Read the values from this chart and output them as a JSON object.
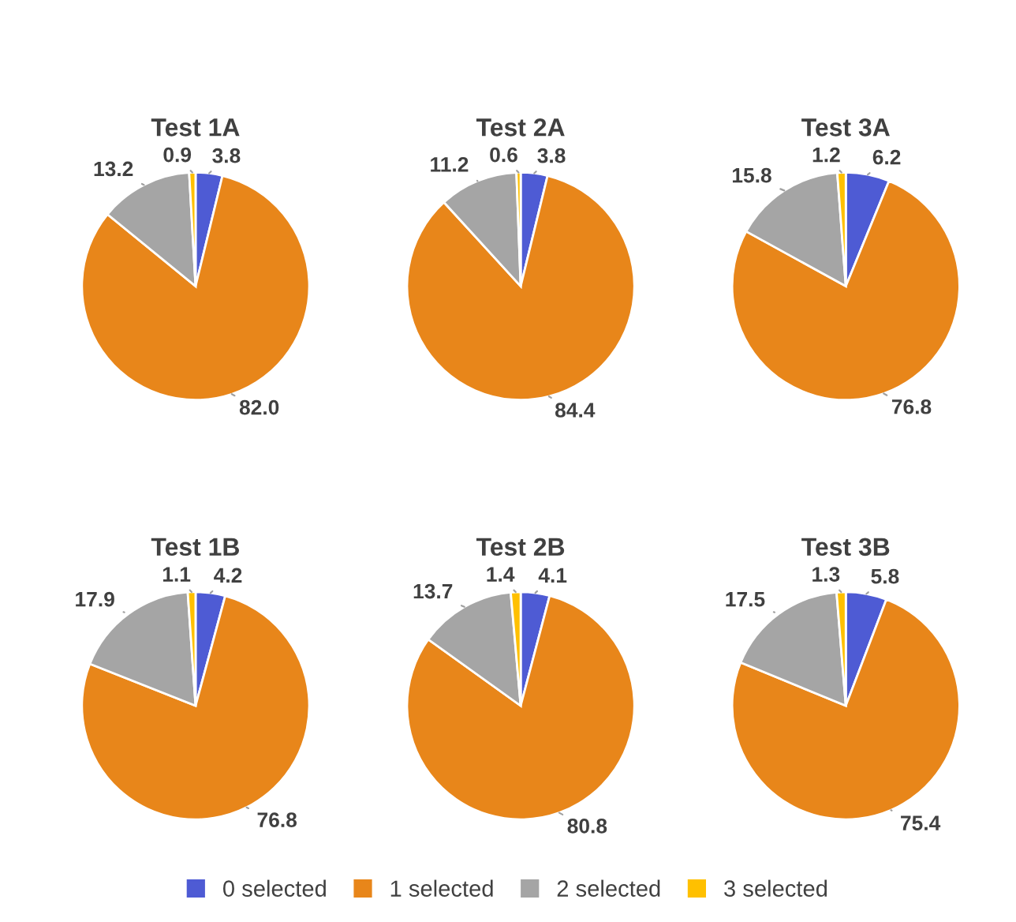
{
  "chart_data": [
    {
      "type": "pie",
      "title": "Test 1A",
      "categories": [
        null,
        null,
        null,
        null
      ],
      "values": [
        3.8,
        82.0,
        13.2,
        0.9
      ],
      "value_labels": [
        "3.8",
        "82.0",
        "13.2",
        "0.9"
      ],
      "colors": [
        "#4e5bd4",
        "#e8861a",
        "#a5a5a5",
        "#ffc000"
      ]
    },
    {
      "type": "pie",
      "title": "Test 2A",
      "categories": [
        null,
        null,
        null,
        null
      ],
      "values": [
        3.8,
        84.4,
        11.2,
        0.6
      ],
      "value_labels": [
        "3.8",
        "84.4",
        "11.2",
        "0.6"
      ],
      "colors": [
        "#4e5bd4",
        "#e8861a",
        "#a5a5a5",
        "#ffc000"
      ]
    },
    {
      "type": "pie",
      "title": "Test 3A",
      "categories": [
        null,
        null,
        null,
        null
      ],
      "values": [
        6.2,
        76.8,
        15.8,
        1.2
      ],
      "value_labels": [
        "6.2",
        "76.8",
        "15.8",
        "1.2"
      ],
      "colors": [
        "#4e5bd4",
        "#e8861a",
        "#a5a5a5",
        "#ffc000"
      ]
    },
    {
      "type": "pie",
      "title": "Test 1B",
      "categories": [
        null,
        null,
        null,
        null
      ],
      "values": [
        4.2,
        76.8,
        17.9,
        1.1
      ],
      "value_labels": [
        "4.2",
        "76.8",
        "17.9",
        "1.1"
      ],
      "colors": [
        "#4e5bd4",
        "#e8861a",
        "#a5a5a5",
        "#ffc000"
      ]
    },
    {
      "type": "pie",
      "title": "Test 2B",
      "categories": [
        null,
        null,
        null,
        null
      ],
      "values": [
        4.1,
        80.8,
        13.7,
        1.4
      ],
      "value_labels": [
        "4.1",
        "80.8",
        "13.7",
        "1.4"
      ],
      "colors": [
        "#4e5bd4",
        "#e8861a",
        "#a5a5a5",
        "#ffc000"
      ]
    },
    {
      "type": "pie",
      "title": "Test 3B",
      "categories": [
        "0 selected",
        "1 selected",
        "2 selected",
        "3 selected"
      ],
      "values": [
        5.8,
        75.4,
        17.5,
        1.3
      ],
      "value_labels": [
        "5.8",
        "75.4",
        "17.5",
        "1.3"
      ],
      "colors": [
        "#4e5bd4",
        "#e8861a",
        "#a5a5a5",
        "#ffc000"
      ],
      "legend": "bottom"
    }
  ]
}
